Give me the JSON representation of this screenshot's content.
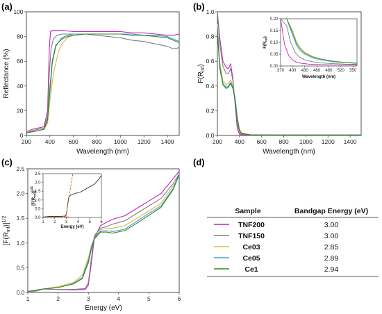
{
  "colors": {
    "TNF200": "#c51fbe",
    "TNF150": "#808080",
    "Ce03": "#e2b53c",
    "Ce05": "#3ea0dc",
    "Ce1": "#2f8a25"
  },
  "chart_data": [
    {
      "panel": "(a)",
      "type": "line",
      "xlabel": "Wavelength (nm)",
      "ylabel": "Reflectance (%)",
      "xlim": [
        200,
        1500
      ],
      "ylim": [
        0,
        100
      ],
      "xticks": [
        200,
        400,
        600,
        800,
        1000,
        1200,
        1400
      ],
      "yticks": [
        0,
        20,
        40,
        60,
        80,
        100
      ],
      "grid": false,
      "series": [
        {
          "key": "TNF200",
          "x": [
            200,
            250,
            300,
            350,
            380,
            395,
            405,
            420,
            450,
            500,
            600,
            700,
            800,
            900,
            1000,
            1100,
            1200,
            1300,
            1400,
            1450,
            1500
          ],
          "y": [
            3,
            5,
            6,
            7,
            20,
            70,
            84,
            85,
            85,
            85,
            84,
            84,
            84,
            84,
            84,
            83,
            83,
            82,
            81,
            81,
            82
          ]
        },
        {
          "key": "TNF150",
          "x": [
            200,
            250,
            300,
            350,
            380,
            395,
            410,
            430,
            460,
            500,
            600,
            700,
            800,
            900,
            1000,
            1100,
            1200,
            1300,
            1400,
            1450,
            1500
          ],
          "y": [
            2,
            4,
            5,
            6,
            15,
            50,
            70,
            78,
            81,
            82,
            82,
            82,
            81,
            80,
            79,
            77,
            76,
            74,
            72,
            70,
            71
          ]
        },
        {
          "key": "Ce03",
          "x": [
            200,
            300,
            350,
            380,
            400,
            430,
            470,
            500,
            550,
            600,
            700,
            800,
            900,
            1000,
            1100,
            1200,
            1300,
            1400,
            1450,
            1500
          ],
          "y": [
            2,
            4,
            5,
            10,
            28,
            50,
            67,
            74,
            79,
            81,
            82,
            82,
            82,
            82,
            82,
            81,
            81,
            80,
            78,
            76
          ]
        },
        {
          "key": "Ce05",
          "x": [
            200,
            300,
            350,
            380,
            400,
            420,
            450,
            500,
            550,
            600,
            700,
            800,
            900,
            1000,
            1100,
            1200,
            1300,
            1400,
            1450,
            1500
          ],
          "y": [
            2,
            4,
            5,
            12,
            34,
            58,
            72,
            79,
            81,
            82,
            82,
            82,
            82,
            82,
            82,
            81,
            81,
            80,
            78,
            76
          ]
        },
        {
          "key": "Ce1",
          "x": [
            200,
            300,
            350,
            380,
            400,
            420,
            450,
            500,
            550,
            600,
            700,
            800,
            900,
            1000,
            1100,
            1200,
            1300,
            1400,
            1450,
            1500
          ],
          "y": [
            2,
            4,
            5,
            13,
            38,
            60,
            73,
            78,
            80,
            81,
            82,
            82,
            82,
            82,
            81,
            81,
            80,
            79,
            77,
            75
          ]
        }
      ]
    },
    {
      "panel": "(b)",
      "type": "line",
      "xlabel": "Wavelength (nm)",
      "ylabel": "F(R_inf)",
      "xlim": [
        200,
        1500
      ],
      "ylim": [
        0,
        1.0
      ],
      "xticks": [
        200,
        400,
        600,
        800,
        1000,
        1200,
        1400
      ],
      "yticks": [
        0.0,
        0.2,
        0.4,
        0.6,
        0.8,
        1.0
      ],
      "grid": false,
      "series": [
        {
          "key": "TNF200",
          "x": [
            200,
            220,
            250,
            280,
            300,
            320,
            340,
            360,
            380,
            400,
            420,
            500,
            800,
            1500
          ],
          "y": [
            1.0,
            0.8,
            0.6,
            0.55,
            0.54,
            0.58,
            0.46,
            0.25,
            0.05,
            0.01,
            0.005,
            0.003,
            0.002,
            0.002
          ]
        },
        {
          "key": "TNF150",
          "x": [
            200,
            220,
            250,
            280,
            300,
            320,
            340,
            360,
            380,
            400,
            420,
            500,
            800,
            1500
          ],
          "y": [
            1.0,
            0.75,
            0.56,
            0.5,
            0.5,
            0.54,
            0.44,
            0.28,
            0.1,
            0.02,
            0.01,
            0.005,
            0.004,
            0.004
          ]
        },
        {
          "key": "Ce03",
          "x": [
            200,
            220,
            250,
            280,
            300,
            320,
            340,
            360,
            380,
            400,
            420,
            500,
            800,
            1500
          ],
          "y": [
            0.9,
            0.6,
            0.44,
            0.41,
            0.42,
            0.45,
            0.4,
            0.3,
            0.15,
            0.05,
            0.02,
            0.006,
            0.004,
            0.004
          ]
        },
        {
          "key": "Ce05",
          "x": [
            200,
            220,
            250,
            280,
            300,
            320,
            340,
            360,
            380,
            400,
            420,
            500,
            800,
            1500
          ],
          "y": [
            0.88,
            0.57,
            0.42,
            0.39,
            0.4,
            0.43,
            0.39,
            0.3,
            0.14,
            0.04,
            0.015,
            0.005,
            0.004,
            0.004
          ]
        },
        {
          "key": "Ce1",
          "x": [
            200,
            220,
            250,
            280,
            300,
            320,
            340,
            360,
            380,
            400,
            420,
            500,
            800,
            1500
          ],
          "y": [
            0.85,
            0.55,
            0.41,
            0.38,
            0.39,
            0.42,
            0.38,
            0.29,
            0.13,
            0.04,
            0.015,
            0.005,
            0.004,
            0.004
          ]
        }
      ],
      "inset": {
        "xlabel": "Wavelength (nm)",
        "ylabel": "F(R_inf)",
        "xlim": [
          370,
          560
        ],
        "ylim": [
          0,
          0.2
        ],
        "xticks": [
          370,
          400,
          430,
          460,
          490,
          520,
          550
        ],
        "yticks": [
          0.0,
          0.05,
          0.1,
          0.15,
          0.2
        ],
        "series": [
          {
            "key": "TNF200",
            "x": [
              370,
              380,
              390,
              400,
              410,
              420,
              440,
              470,
              500,
              530,
              560
            ],
            "y": [
              0.2,
              0.09,
              0.045,
              0.025,
              0.016,
              0.012,
              0.008,
              0.006,
              0.005,
              0.004,
              0.004
            ]
          },
          {
            "key": "TNF150",
            "x": [
              370,
              385,
              395,
              405,
              415,
              430,
              450,
              470,
              500,
              530,
              560
            ],
            "y": [
              0.2,
              0.17,
              0.1,
              0.06,
              0.04,
              0.026,
              0.018,
              0.013,
              0.01,
              0.008,
              0.007
            ]
          },
          {
            "key": "Ce03",
            "x": [
              370,
              385,
              400,
              410,
              420,
              430,
              450,
              470,
              500,
              530,
              560
            ],
            "y": [
              0.2,
              0.2,
              0.15,
              0.1,
              0.075,
              0.058,
              0.04,
              0.03,
              0.021,
              0.016,
              0.012
            ]
          },
          {
            "key": "Ce05",
            "x": [
              370,
              385,
              400,
              410,
              420,
              430,
              450,
              470,
              500,
              530,
              560
            ],
            "y": [
              0.2,
              0.2,
              0.13,
              0.085,
              0.063,
              0.05,
              0.034,
              0.026,
              0.018,
              0.014,
              0.011
            ]
          },
          {
            "key": "Ce1",
            "x": [
              370,
              385,
              400,
              410,
              420,
              430,
              450,
              470,
              500,
              530,
              560
            ],
            "y": [
              0.2,
              0.2,
              0.14,
              0.094,
              0.07,
              0.055,
              0.038,
              0.029,
              0.02,
              0.015,
              0.012
            ]
          }
        ]
      }
    },
    {
      "panel": "(c)",
      "type": "line",
      "xlabel": "Energy (eV)",
      "ylabel": "[F(R_inf)]^1/2",
      "xlim": [
        1,
        6
      ],
      "ylim": [
        0,
        2.5
      ],
      "xticks": [
        1,
        2,
        3,
        4,
        5,
        6
      ],
      "yticks": [
        0.0,
        0.5,
        1.0,
        1.5,
        2.0,
        2.5
      ],
      "grid": false,
      "series": [
        {
          "key": "TNF200",
          "x": [
            1,
            1.3,
            1.5,
            2,
            2.5,
            2.9,
            3.0,
            3.1,
            3.2,
            3.4,
            3.6,
            3.8,
            4.2,
            4.6,
            5.0,
            5.4,
            5.8,
            6.0
          ],
          "y": [
            0.02,
            0.03,
            0.07,
            0.06,
            0.05,
            0.06,
            0.15,
            0.6,
            1.1,
            1.35,
            1.42,
            1.48,
            1.55,
            1.7,
            1.85,
            2.0,
            2.3,
            2.45
          ]
        },
        {
          "key": "TNF150",
          "x": [
            1,
            1.3,
            1.5,
            2,
            2.5,
            2.9,
            3.0,
            3.1,
            3.2,
            3.4,
            3.6,
            3.8,
            4.2,
            4.6,
            5.0,
            5.4,
            5.8,
            6.0
          ],
          "y": [
            0.02,
            0.03,
            0.07,
            0.06,
            0.06,
            0.08,
            0.2,
            0.7,
            1.15,
            1.3,
            1.33,
            1.38,
            1.45,
            1.6,
            1.75,
            1.9,
            2.2,
            2.4
          ]
        },
        {
          "key": "Ce03",
          "x": [
            1,
            1.5,
            2,
            2.5,
            2.8,
            3.0,
            3.1,
            3.2,
            3.4,
            3.6,
            3.8,
            4.2,
            4.6,
            5.0,
            5.4,
            5.8,
            6.0
          ],
          "y": [
            0.02,
            0.07,
            0.12,
            0.2,
            0.35,
            0.7,
            0.95,
            1.1,
            1.27,
            1.3,
            1.3,
            1.35,
            1.5,
            1.65,
            1.8,
            2.15,
            2.35
          ]
        },
        {
          "key": "Ce05",
          "x": [
            1,
            1.5,
            2,
            2.5,
            2.8,
            3.0,
            3.1,
            3.2,
            3.4,
            3.6,
            3.8,
            4.2,
            4.6,
            5.0,
            5.4,
            5.8,
            6.0
          ],
          "y": [
            0.02,
            0.07,
            0.1,
            0.18,
            0.3,
            0.65,
            0.92,
            1.1,
            1.24,
            1.25,
            1.23,
            1.28,
            1.44,
            1.6,
            1.75,
            2.1,
            2.4
          ]
        },
        {
          "key": "Ce1",
          "x": [
            1,
            1.5,
            2,
            2.5,
            2.8,
            3.0,
            3.1,
            3.2,
            3.4,
            3.6,
            3.8,
            4.2,
            4.6,
            5.0,
            5.4,
            5.8,
            6.0
          ],
          "y": [
            0.02,
            0.07,
            0.1,
            0.17,
            0.28,
            0.6,
            0.88,
            1.08,
            1.22,
            1.22,
            1.2,
            1.25,
            1.4,
            1.56,
            1.72,
            2.08,
            2.38
          ]
        }
      ],
      "inset": {
        "xlabel": "Energy (eV)",
        "ylabel": "[F(R_inf)]^1/2",
        "xlim": [
          1,
          6
        ],
        "ylim": [
          0,
          2.5
        ],
        "xticks": [
          1,
          2,
          3,
          4,
          5,
          6
        ],
        "yticks": [
          0.0,
          0.5,
          1.0,
          1.5,
          2.0,
          2.5
        ],
        "series": [
          {
            "key": "TNF150",
            "x": [
              1,
              1.5,
              2,
              2.5,
              2.9,
              3.0,
              3.1,
              3.2,
              3.4,
              3.6,
              3.8,
              4.2,
              4.6,
              5.0,
              5.4,
              5.8,
              6.0
            ],
            "y": [
              0.02,
              0.06,
              0.06,
              0.06,
              0.08,
              0.2,
              0.7,
              1.15,
              1.3,
              1.33,
              1.38,
              1.45,
              1.6,
              1.75,
              1.9,
              2.2,
              2.4
            ]
          }
        ],
        "tangent": {
          "x": [
            2.95,
            3.55
          ],
          "y": [
            0,
            2.5
          ]
        },
        "baseline": {
          "x": [
            1,
            3.2
          ],
          "y": [
            0.03,
            0.03
          ]
        }
      }
    }
  ],
  "panels": {
    "a": "(a)",
    "b": "(b)",
    "c": "(c)",
    "d": "(d)"
  },
  "axes_text": {
    "a": {
      "xlabel": "Wavelength (nm)",
      "ylabel": "Reflectance (%)"
    },
    "b": {
      "xlabel": "Wavelength (nm)",
      "ylabel_main": "F(R",
      "ylabel_sub": "inf",
      "ylabel_end": ")",
      "inset_xlabel": "Wavelength (nm)",
      "inset_ylabel_main": "F(R",
      "inset_ylabel_sub": "inf",
      "inset_ylabel_end": ")"
    },
    "c": {
      "xlabel": "Energy (eV)",
      "ylabel_a": "[F(R",
      "ylabel_sub": "inf",
      "ylabel_b": ")]",
      "ylabel_sup": "1/2",
      "inset_xlabel": "Energy (eV)",
      "inset_ylabel_a": "[F(R",
      "inset_ylabel_sub": "inf",
      "inset_ylabel_b": ")]",
      "inset_ylabel_sup": "1/2"
    }
  },
  "table": {
    "headers": [
      "Sample",
      "Bandgap Energy (eV)"
    ],
    "rows": [
      {
        "key": "TNF200",
        "name": "TNF200",
        "value": "3.00"
      },
      {
        "key": "TNF150",
        "name": "TNF150",
        "value": "3.00"
      },
      {
        "key": "Ce03",
        "name": "Ce03",
        "value": "2.85"
      },
      {
        "key": "Ce05",
        "name": "Ce05",
        "value": "2.89"
      },
      {
        "key": "Ce1",
        "name": "Ce1",
        "value": "2.94"
      }
    ]
  }
}
